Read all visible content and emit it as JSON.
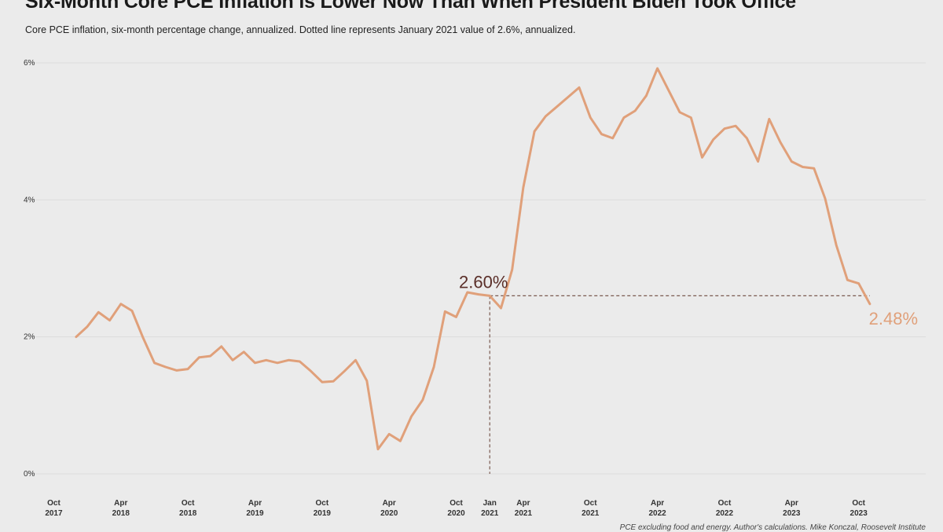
{
  "title": "Six-Month Core PCE Inflation is Lower Now Than When President Biden Took Office",
  "subtitle": "Core PCE inflation, six-month percentage change, annualized. Dotted line represents January 2021 value of 2.6%, annualized.",
  "source": "PCE excluding food and energy. Author's calculations. Mike Konczal, Roosevelt Institute",
  "colors": {
    "line": "#e0a07a",
    "reference": "#7a5a50",
    "start_label": "#5a2e28",
    "end_label": "#e0a07a",
    "background": "#ebebeb"
  },
  "chart_data": {
    "type": "line",
    "title": "Six-Month Core PCE Inflation is Lower Now Than When President Biden Took Office",
    "xlabel": "",
    "ylabel": "",
    "grid": true,
    "ylim": [
      0,
      6
    ],
    "yticks": [
      {
        "value": 0,
        "label": "0%"
      },
      {
        "value": 2,
        "label": "2%"
      },
      {
        "value": 4,
        "label": "4%"
      },
      {
        "value": 6,
        "label": "6%"
      }
    ],
    "xticks": [
      {
        "x": "2017-10",
        "line1": "Oct",
        "line2": "2017"
      },
      {
        "x": "2018-04",
        "line1": "Apr",
        "line2": "2018"
      },
      {
        "x": "2018-10",
        "line1": "Oct",
        "line2": "2018"
      },
      {
        "x": "2019-04",
        "line1": "Apr",
        "line2": "2019"
      },
      {
        "x": "2019-10",
        "line1": "Oct",
        "line2": "2019"
      },
      {
        "x": "2020-04",
        "line1": "Apr",
        "line2": "2020"
      },
      {
        "x": "2020-10",
        "line1": "Oct",
        "line2": "2020"
      },
      {
        "x": "2021-01",
        "line1": "Jan",
        "line2": "2021"
      },
      {
        "x": "2021-04",
        "line1": "Apr",
        "line2": "2021"
      },
      {
        "x": "2021-10",
        "line1": "Oct",
        "line2": "2021"
      },
      {
        "x": "2022-04",
        "line1": "Apr",
        "line2": "2022"
      },
      {
        "x": "2022-10",
        "line1": "Oct",
        "line2": "2022"
      },
      {
        "x": "2023-04",
        "line1": "Apr",
        "line2": "2023"
      },
      {
        "x": "2023-10",
        "line1": "Oct",
        "line2": "2023"
      }
    ],
    "x_range": [
      "2017-08",
      "2024-04"
    ],
    "series": [
      {
        "name": "",
        "points": [
          [
            "2017-12",
            2.0
          ],
          [
            "2018-01",
            2.15
          ],
          [
            "2018-02",
            2.36
          ],
          [
            "2018-03",
            2.24
          ],
          [
            "2018-04",
            2.48
          ],
          [
            "2018-05",
            2.38
          ],
          [
            "2018-06",
            1.98
          ],
          [
            "2018-07",
            1.62
          ],
          [
            "2018-08",
            1.56
          ],
          [
            "2018-09",
            1.51
          ],
          [
            "2018-10",
            1.53
          ],
          [
            "2018-11",
            1.7
          ],
          [
            "2018-12",
            1.72
          ],
          [
            "2019-01",
            1.86
          ],
          [
            "2019-02",
            1.66
          ],
          [
            "2019-03",
            1.78
          ],
          [
            "2019-04",
            1.62
          ],
          [
            "2019-05",
            1.66
          ],
          [
            "2019-06",
            1.62
          ],
          [
            "2019-07",
            1.66
          ],
          [
            "2019-08",
            1.64
          ],
          [
            "2019-09",
            1.5
          ],
          [
            "2019-10",
            1.34
          ],
          [
            "2019-11",
            1.35
          ],
          [
            "2019-12",
            1.5
          ],
          [
            "2020-01",
            1.66
          ],
          [
            "2020-02",
            1.36
          ],
          [
            "2020-03",
            0.36
          ],
          [
            "2020-04",
            0.58
          ],
          [
            "2020-05",
            0.48
          ],
          [
            "2020-06",
            0.84
          ],
          [
            "2020-07",
            1.08
          ],
          [
            "2020-08",
            1.56
          ],
          [
            "2020-09",
            2.37
          ],
          [
            "2020-10",
            2.29
          ],
          [
            "2020-11",
            2.65
          ],
          [
            "2020-12",
            2.62
          ],
          [
            "2021-01",
            2.6
          ],
          [
            "2021-02",
            2.42
          ],
          [
            "2021-03",
            2.98
          ],
          [
            "2021-04",
            4.18
          ],
          [
            "2021-05",
            5.0
          ],
          [
            "2021-06",
            5.22
          ],
          [
            "2021-07",
            5.36
          ],
          [
            "2021-08",
            5.5
          ],
          [
            "2021-09",
            5.64
          ],
          [
            "2021-10",
            5.2
          ],
          [
            "2021-11",
            4.96
          ],
          [
            "2021-12",
            4.9
          ],
          [
            "2022-01",
            5.2
          ],
          [
            "2022-02",
            5.3
          ],
          [
            "2022-03",
            5.52
          ],
          [
            "2022-04",
            5.92
          ],
          [
            "2022-05",
            5.6
          ],
          [
            "2022-06",
            5.28
          ],
          [
            "2022-07",
            5.2
          ],
          [
            "2022-08",
            4.62
          ],
          [
            "2022-09",
            4.88
          ],
          [
            "2022-10",
            5.04
          ],
          [
            "2022-11",
            5.08
          ],
          [
            "2022-12",
            4.9
          ],
          [
            "2023-01",
            4.56
          ],
          [
            "2023-02",
            5.18
          ],
          [
            "2023-03",
            4.84
          ],
          [
            "2023-04",
            4.56
          ],
          [
            "2023-05",
            4.48
          ],
          [
            "2023-06",
            4.46
          ],
          [
            "2023-07",
            4.02
          ],
          [
            "2023-08",
            3.34
          ],
          [
            "2023-09",
            2.83
          ],
          [
            "2023-10",
            2.78
          ],
          [
            "2023-11",
            2.48
          ]
        ]
      }
    ],
    "reference": {
      "x": "2021-01",
      "y": 2.6
    },
    "annotations": [
      {
        "text": "2.60%",
        "x": "2021-01",
        "y": 2.6,
        "role": "start"
      },
      {
        "text": "2.48%",
        "x": "2023-11",
        "y": 2.48,
        "role": "end"
      }
    ]
  }
}
